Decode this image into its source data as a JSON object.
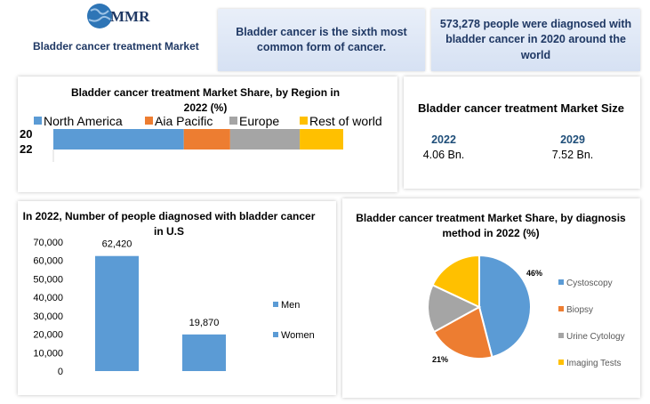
{
  "header": {
    "logo": "MMR",
    "title": "Bladder cancer treatment Market"
  },
  "facts": [
    "Bladder cancer is the sixth most common form of cancer.",
    "573,278  people were diagnosed with bladder cancer in 2020 around the world"
  ],
  "market_size": {
    "title": "Bladder cancer treatment Market Size",
    "items": [
      {
        "year": "2022",
        "value": "4.06 Bn."
      },
      {
        "year": "2029",
        "value": "7.52 Bn."
      }
    ]
  },
  "chart_data": [
    {
      "type": "bar",
      "orientation": "horizontal",
      "stacked": true,
      "title": "Bladder cancer treatment Market Share, by Region in 2022 (%)",
      "categories": [
        "2022"
      ],
      "xlim": [
        0,
        100
      ],
      "series": [
        {
          "name": "North America",
          "color": "#5b9bd5",
          "values": [
            45
          ]
        },
        {
          "name": "Aia Pacific",
          "color": "#ed7d31",
          "values": [
            16
          ]
        },
        {
          "name": "Europe",
          "color": "#a5a5a5",
          "values": [
            24
          ]
        },
        {
          "name": "Rest of world",
          "color": "#ffc000",
          "values": [
            15
          ]
        }
      ]
    },
    {
      "type": "bar",
      "orientation": "vertical",
      "stacked": false,
      "title": "In 2022, Number of people diagnosed with bladder cancer in U.S",
      "ylim": [
        0,
        70000
      ],
      "yticks": [
        0,
        {
          "value": 10000,
          "label": "10,000"
        },
        {
          "value": 20000,
          "label": "20,000"
        },
        {
          "value": 30000,
          "label": "30,000"
        },
        {
          "value": 40000,
          "label": "40,000"
        },
        {
          "value": 50000,
          "label": "50,000"
        },
        {
          "value": 60000,
          "label": "60,000"
        },
        {
          "value": 70000,
          "label": "70,000"
        }
      ],
      "series": [
        {
          "name": "Men",
          "color": "#5b9bd5",
          "values": [
            62420
          ],
          "value_labels": [
            "62,420"
          ]
        },
        {
          "name": "Women",
          "color": "#5b9bd5",
          "values": [
            19870
          ],
          "value_labels": [
            "19,870"
          ]
        }
      ]
    },
    {
      "type": "pie",
      "title": "Bladder cancer treatment Market Share, by diagnosis method in 2022 (%)",
      "categories": [
        "Cystoscopy",
        "Biopsy",
        "Urine Cytology",
        "Imaging Tests"
      ],
      "values": [
        46,
        21,
        15,
        18
      ],
      "value_labels": [
        "46%",
        "21%",
        null,
        null
      ],
      "colors": [
        "#5b9bd5",
        "#ed7d31",
        "#a5a5a5",
        "#ffc000"
      ]
    }
  ]
}
